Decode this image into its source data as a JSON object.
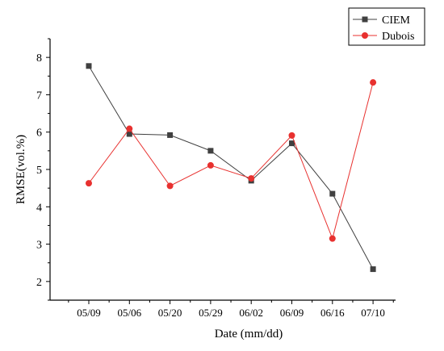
{
  "chart_data": {
    "type": "line",
    "title": "",
    "xlabel": "Date (mm/dd)",
    "ylabel": "RMSE(vol.%)",
    "ylim": [
      1.5,
      8.5
    ],
    "yticks": [
      2,
      3,
      4,
      5,
      6,
      7,
      8
    ],
    "categories": [
      "05/09",
      "05/06",
      "05/20",
      "05/29",
      "06/02",
      "06/09",
      "06/16",
      "07/10"
    ],
    "grid": false,
    "legend_position": "top-right",
    "series": [
      {
        "name": "CIEM",
        "color": "#404040",
        "marker": "square",
        "values": [
          7.77,
          5.95,
          5.92,
          5.5,
          4.7,
          5.7,
          4.35,
          2.33
        ]
      },
      {
        "name": "Dubois",
        "color": "#e8312f",
        "marker": "circle",
        "values": [
          4.63,
          6.09,
          4.56,
          5.11,
          4.76,
          5.91,
          3.15,
          7.33
        ]
      }
    ]
  }
}
